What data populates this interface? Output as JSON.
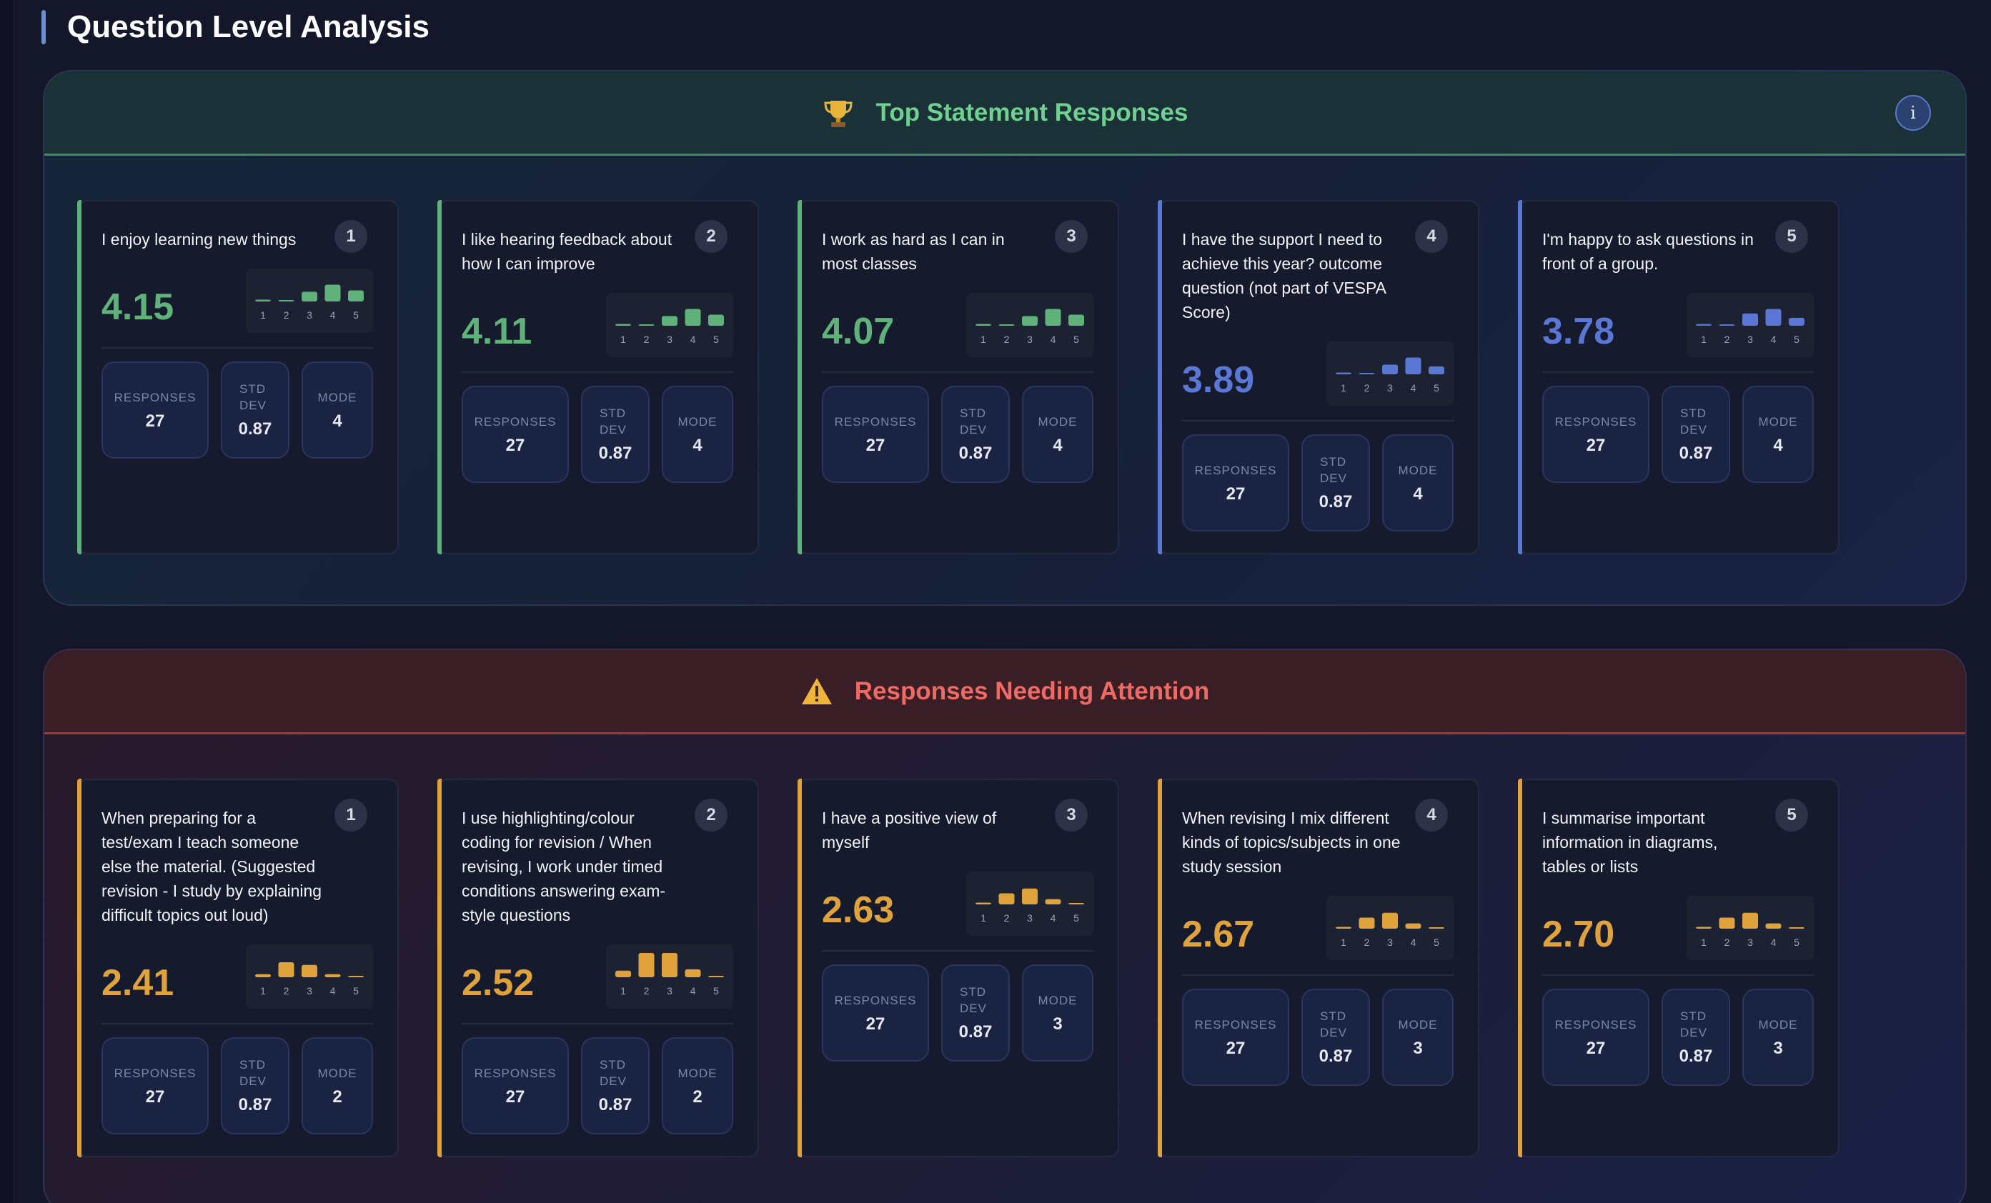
{
  "page": {
    "title": "Question Level Analysis"
  },
  "colors": {
    "green": "#5fb37a",
    "blue": "#5a77d6",
    "orange": "#e0a33c",
    "green_text": "#6fd08f",
    "red_text": "#f06a64"
  },
  "top_section": {
    "icon": "trophy-icon",
    "title": "Top Statement Responses",
    "info_label": "i",
    "cards": [
      {
        "rank": "1",
        "text": "I enjoy learning new things",
        "score": "4.15",
        "accent": "green",
        "dist": [
          0.04,
          0.01,
          0.22,
          0.38,
          0.25
        ],
        "responses": "27",
        "std_dev": "0.87",
        "mode": "4"
      },
      {
        "rank": "2",
        "text": "I like hearing feedback about how I can improve",
        "score": "4.11",
        "accent": "green",
        "dist": [
          0.04,
          0.01,
          0.22,
          0.38,
          0.25
        ],
        "responses": "27",
        "std_dev": "0.87",
        "mode": "4"
      },
      {
        "rank": "3",
        "text": "I work as hard as I can in most classes",
        "score": "4.07",
        "accent": "green",
        "dist": [
          0.04,
          0.01,
          0.22,
          0.38,
          0.25
        ],
        "responses": "27",
        "std_dev": "0.87",
        "mode": "4"
      },
      {
        "rank": "4",
        "text": "I have the support I need to achieve this year? outcome question (not part of VESPA Score)",
        "score": "3.89",
        "accent": "blue",
        "dist": [
          0.04,
          0.01,
          0.22,
          0.38,
          0.18
        ],
        "responses": "27",
        "std_dev": "0.87",
        "mode": "4"
      },
      {
        "rank": "5",
        "text": "I'm happy to ask questions in front of a group.",
        "score": "3.78",
        "accent": "blue",
        "dist": [
          0.04,
          0.01,
          0.28,
          0.38,
          0.18
        ],
        "responses": "27",
        "std_dev": "0.87",
        "mode": "4"
      }
    ]
  },
  "attention_section": {
    "icon": "warning-icon",
    "title": "Responses Needing Attention",
    "cards": [
      {
        "rank": "1",
        "text": "When preparing for a test/exam I teach someone else the material. (Suggested revision - I study by explaining difficult topics out loud)",
        "score": "2.41",
        "accent": "orange",
        "dist": [
          0.07,
          0.34,
          0.28,
          0.07,
          0.01
        ],
        "responses": "27",
        "std_dev": "0.87",
        "mode": "2"
      },
      {
        "rank": "2",
        "text": "I use highlighting/colour coding for revision / When revising, I work under timed conditions answering exam-style questions",
        "score": "2.52",
        "accent": "orange",
        "dist": [
          0.15,
          0.55,
          0.55,
          0.18,
          0.01
        ],
        "responses": "27",
        "std_dev": "0.87",
        "mode": "2"
      },
      {
        "rank": "3",
        "text": "I have a positive view of myself",
        "score": "2.63",
        "accent": "orange",
        "dist": [
          0.04,
          0.25,
          0.36,
          0.12,
          0.01
        ],
        "responses": "27",
        "std_dev": "0.87",
        "mode": "3"
      },
      {
        "rank": "4",
        "text": "When revising I mix different kinds of topics/subjects in one study session",
        "score": "2.67",
        "accent": "orange",
        "dist": [
          0.04,
          0.25,
          0.36,
          0.12,
          0.01
        ],
        "responses": "27",
        "std_dev": "0.87",
        "mode": "3"
      },
      {
        "rank": "5",
        "text": "I summarise important information in diagrams, tables or lists",
        "score": "2.70",
        "accent": "orange",
        "dist": [
          0.04,
          0.25,
          0.36,
          0.12,
          0.01
        ],
        "responses": "27",
        "std_dev": "0.87",
        "mode": "3"
      }
    ]
  },
  "labels": {
    "responses": "RESPONSES",
    "std_dev": "STD DEV",
    "mode": "MODE",
    "scale": [
      "1",
      "2",
      "3",
      "4",
      "5"
    ]
  }
}
